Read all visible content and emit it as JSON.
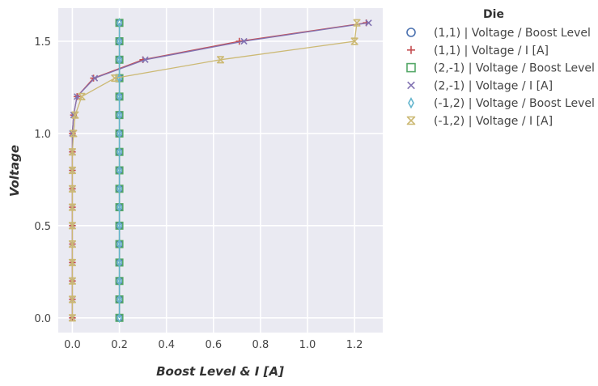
{
  "chart_data": {
    "type": "line",
    "xlabel": "Boost Level & I [A]",
    "ylabel": "Voltage",
    "xlim": [
      -0.06,
      1.32
    ],
    "ylim": [
      -0.08,
      1.68
    ],
    "xticks": [
      0.0,
      0.2,
      0.4,
      0.6,
      0.8,
      1.0,
      1.2
    ],
    "xtick_labels": [
      "0.0",
      "0.2",
      "0.4",
      "0.6",
      "0.8",
      "1.0",
      "1.2"
    ],
    "yticks": [
      0.0,
      0.5,
      1.0,
      1.5
    ],
    "ytick_labels": [
      "0.0",
      "0.5",
      "1.0",
      "1.5"
    ],
    "grid": true,
    "legend_title": "Die",
    "legend_position": "outside-right",
    "series": [
      {
        "name": "(1,1) | Voltage / Boost Level",
        "marker": "circle",
        "color": "#4c72b0",
        "x": [
          0.2,
          0.2,
          0.2,
          0.2,
          0.2,
          0.2,
          0.2,
          0.2,
          0.2,
          0.2,
          0.2,
          0.2,
          0.2,
          0.2,
          0.2,
          0.2,
          0.2
        ],
        "y": [
          0.0,
          0.1,
          0.2,
          0.3,
          0.4,
          0.5,
          0.6,
          0.7,
          0.8,
          0.9,
          1.0,
          1.1,
          1.2,
          1.3,
          1.4,
          1.5,
          1.6
        ]
      },
      {
        "name": "(1,1) | Voltage / I [A]",
        "marker": "plus",
        "color": "#c44e52",
        "x": [
          0.0,
          0.0,
          0.0,
          0.0,
          0.0,
          0.0,
          0.0,
          0.0,
          0.0,
          0.0,
          0.0,
          0.005,
          0.02,
          0.09,
          0.3,
          0.71,
          1.25
        ],
        "y": [
          0.0,
          0.1,
          0.2,
          0.3,
          0.4,
          0.5,
          0.6,
          0.7,
          0.8,
          0.9,
          1.0,
          1.1,
          1.2,
          1.3,
          1.4,
          1.5,
          1.6
        ]
      },
      {
        "name": "(2,-1) | Voltage / Boost Level",
        "marker": "square",
        "color": "#55a868",
        "x": [
          0.2,
          0.2,
          0.2,
          0.2,
          0.2,
          0.2,
          0.2,
          0.2,
          0.2,
          0.2,
          0.2,
          0.2,
          0.2,
          0.2,
          0.2,
          0.2,
          0.2
        ],
        "y": [
          0.0,
          0.1,
          0.2,
          0.3,
          0.4,
          0.5,
          0.6,
          0.7,
          0.8,
          0.9,
          1.0,
          1.1,
          1.2,
          1.3,
          1.4,
          1.5,
          1.6
        ]
      },
      {
        "name": "(2,-1) | Voltage / I [A]",
        "marker": "x",
        "color": "#8172b2",
        "x": [
          0.0,
          0.0,
          0.0,
          0.0,
          0.0,
          0.0,
          0.0,
          0.0,
          0.0,
          0.0,
          0.0,
          0.005,
          0.02,
          0.095,
          0.31,
          0.73,
          1.26
        ],
        "y": [
          0.0,
          0.1,
          0.2,
          0.3,
          0.4,
          0.5,
          0.6,
          0.7,
          0.8,
          0.9,
          1.0,
          1.1,
          1.2,
          1.3,
          1.4,
          1.5,
          1.6
        ]
      },
      {
        "name": "(-1,2) | Voltage / Boost Level",
        "marker": "thin_diamond",
        "color": "#64b5cd",
        "x": [
          0.2,
          0.2,
          0.2,
          0.2,
          0.2,
          0.2,
          0.2,
          0.2,
          0.2,
          0.2,
          0.2,
          0.2,
          0.2,
          0.2,
          0.2,
          0.2,
          0.2
        ],
        "y": [
          0.0,
          0.1,
          0.2,
          0.3,
          0.4,
          0.5,
          0.6,
          0.7,
          0.8,
          0.9,
          1.0,
          1.1,
          1.2,
          1.3,
          1.4,
          1.5,
          1.6
        ]
      },
      {
        "name": "(-1,2) | Voltage / I [A]",
        "marker": "hourglass",
        "color": "#ccb974",
        "x": [
          0.0,
          0.0,
          0.0,
          0.0,
          0.0,
          0.0,
          0.0,
          0.0,
          0.0,
          0.0,
          0.005,
          0.012,
          0.04,
          0.18,
          0.63,
          1.2,
          1.21
        ],
        "y": [
          0.0,
          0.1,
          0.2,
          0.3,
          0.4,
          0.5,
          0.6,
          0.7,
          0.8,
          0.9,
          1.0,
          1.1,
          1.2,
          1.3,
          1.4,
          1.5,
          1.6
        ]
      }
    ]
  }
}
